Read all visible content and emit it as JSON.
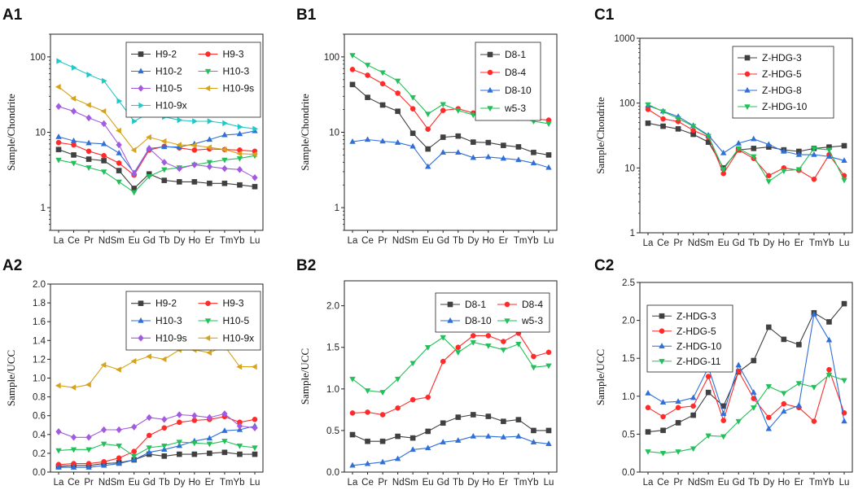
{
  "figure": {
    "elements": [
      "La",
      "Ce",
      "Pr",
      "Nd",
      "Sm",
      "Eu",
      "Gd",
      "Tb",
      "Dy",
      "Ho",
      "Er",
      "Tm",
      "Yb",
      "Lu"
    ],
    "tick_text": [
      "La",
      "Ce",
      "Pr",
      "NdSm",
      "Eu",
      "Gd",
      "Tb",
      "Dy",
      "Ho",
      "Er",
      "TmYb",
      "Lu"
    ]
  },
  "chart_data": [
    {
      "id": "A1",
      "label": "A1",
      "type": "line",
      "yscale": "log",
      "ylabel": "Sample/Chondrite",
      "ylim": [
        0.5,
        200
      ],
      "yticks": [
        1,
        10,
        100
      ],
      "ytick_labels": [
        "1",
        "10",
        "100"
      ],
      "legend_cols": 2,
      "series": [
        {
          "name": "H9-2",
          "color": "#404040",
          "marker": "square",
          "values": [
            5.9,
            5.0,
            4.4,
            4.2,
            3.1,
            1.8,
            2.8,
            2.3,
            2.2,
            2.2,
            2.1,
            2.1,
            2.0,
            1.9
          ]
        },
        {
          "name": "H9-3",
          "color": "#ff2b2b",
          "marker": "circle",
          "values": [
            7.3,
            6.8,
            5.6,
            4.9,
            3.9,
            2.7,
            5.8,
            6.5,
            6.2,
            5.8,
            6.0,
            5.9,
            5.8,
            5.6
          ]
        },
        {
          "name": "H10-2",
          "color": "#2f6fd8",
          "marker": "triangle-up",
          "values": [
            8.7,
            7.7,
            7.2,
            7.0,
            5.3,
            2.9,
            6.1,
            6.4,
            6.4,
            7.0,
            8.0,
            9.2,
            9.5,
            10.4
          ]
        },
        {
          "name": "H10-3",
          "color": "#22c05a",
          "marker": "triangle-down",
          "values": [
            4.3,
            3.9,
            3.4,
            3.0,
            2.2,
            1.6,
            2.6,
            3.2,
            3.4,
            3.7,
            4.0,
            4.3,
            4.5,
            4.9
          ]
        },
        {
          "name": "H10-5",
          "color": "#a25be0",
          "marker": "diamond",
          "values": [
            22,
            19,
            15.5,
            13,
            6.8,
            2.8,
            6.1,
            4.0,
            3.3,
            3.7,
            3.5,
            3.3,
            3.2,
            2.5
          ]
        },
        {
          "name": "H10-9s",
          "color": "#d6a31a",
          "marker": "triangle-left",
          "values": [
            40,
            28,
            23,
            19,
            10.5,
            5.8,
            8.6,
            7.6,
            6.8,
            6.7,
            6.3,
            5.9,
            5.2,
            5.1
          ]
        },
        {
          "name": "H10-9x",
          "color": "#22c8c8",
          "marker": "triangle-right",
          "values": [
            88,
            72,
            58,
            48,
            26,
            14,
            18,
            16,
            14.5,
            14,
            14,
            13.2,
            11.8,
            11.1
          ]
        }
      ]
    },
    {
      "id": "B1",
      "label": "B1",
      "type": "line",
      "yscale": "log",
      "ylabel": "Sample/Chondrite",
      "ylim": [
        0.5,
        200
      ],
      "yticks": [
        1,
        10,
        100
      ],
      "ytick_labels": [
        "1",
        "10",
        "100"
      ],
      "legend_cols": 1,
      "series": [
        {
          "name": "D8-1",
          "color": "#404040",
          "marker": "square",
          "values": [
            43,
            29,
            23,
            19,
            9.7,
            6.0,
            8.6,
            8.9,
            7.4,
            7.3,
            6.7,
            6.4,
            5.4,
            5.0
          ]
        },
        {
          "name": "D8-4",
          "color": "#ff2b2b",
          "marker": "circle",
          "values": [
            68,
            57,
            44,
            33,
            20.5,
            11,
            19.5,
            20.5,
            18,
            18,
            17.5,
            17,
            15,
            14.5
          ]
        },
        {
          "name": "D8-10",
          "color": "#2f6fd8",
          "marker": "triangle-up",
          "values": [
            7.5,
            8.0,
            7.6,
            7.3,
            6.5,
            3.5,
            5.4,
            5.4,
            4.6,
            4.7,
            4.5,
            4.3,
            3.9,
            3.4
          ]
        },
        {
          "name": "w5-3",
          "color": "#22c05a",
          "marker": "triangle-down",
          "values": [
            105,
            78,
            62,
            48,
            29,
            17.5,
            23.5,
            19.5,
            17,
            17,
            16.5,
            15.5,
            14,
            13
          ]
        }
      ]
    },
    {
      "id": "C1",
      "label": "C1",
      "type": "line",
      "yscale": "log",
      "ylabel": "Sample/Chondrite",
      "ylim": [
        1,
        1000
      ],
      "yticks": [
        1,
        10,
        100,
        1000
      ],
      "ytick_labels": [
        "1",
        "10",
        "100",
        "1000"
      ],
      "legend_cols": 1,
      "series": [
        {
          "name": "Z-HDG-3",
          "color": "#404040",
          "marker": "square",
          "values": [
            49,
            44,
            40,
            33,
            25,
            10,
            19,
            20,
            21,
            19,
            18,
            20,
            21,
            22
          ]
        },
        {
          "name": "Z-HDG-5",
          "color": "#ff2b2b",
          "marker": "circle",
          "values": [
            80,
            57,
            52,
            38,
            30,
            8.2,
            19,
            14,
            7.6,
            10,
            9.2,
            6.7,
            16,
            7.6
          ]
        },
        {
          "name": "Z-HDG-8",
          "color": "#2f6fd8",
          "marker": "triangle-up",
          "values": [
            92,
            75,
            62,
            45,
            32,
            17,
            24,
            28,
            23,
            18,
            16,
            16,
            15,
            13
          ]
        },
        {
          "name": "Z-HDG-10",
          "color": "#22c05a",
          "marker": "triangle-down",
          "values": [
            95,
            74,
            58,
            44,
            31,
            9.5,
            20,
            15,
            6.2,
            9,
            9.5,
            20,
            19,
            6.5
          ]
        }
      ]
    },
    {
      "id": "A2",
      "label": "A2",
      "type": "line",
      "yscale": "linear",
      "ylabel": "Sample/UCC",
      "ylim": [
        0,
        2.0
      ],
      "yticks": [
        0,
        0.2,
        0.4,
        0.6,
        0.8,
        1.0,
        1.2,
        1.4,
        1.6,
        1.8,
        2.0
      ],
      "ytick_labels": [
        "0.0",
        "0.2",
        "0.4",
        "0.6",
        "0.8",
        "1.0",
        "1.2",
        "1.4",
        "1.6",
        "1.8",
        "2.0"
      ],
      "legend_cols": 2,
      "series": [
        {
          "name": "H9-2",
          "color": "#404040",
          "marker": "square",
          "values": [
            0.06,
            0.07,
            0.07,
            0.09,
            0.1,
            0.13,
            0.19,
            0.17,
            0.19,
            0.19,
            0.2,
            0.21,
            0.19,
            0.19
          ]
        },
        {
          "name": "H9-3",
          "color": "#ff2b2b",
          "marker": "circle",
          "values": [
            0.08,
            0.09,
            0.09,
            0.11,
            0.15,
            0.22,
            0.39,
            0.47,
            0.53,
            0.55,
            0.56,
            0.59,
            0.53,
            0.56
          ]
        },
        {
          "name": "H10-3",
          "color": "#2f6fd8",
          "marker": "triangle-up",
          "values": [
            0.05,
            0.05,
            0.05,
            0.07,
            0.09,
            0.13,
            0.21,
            0.24,
            0.28,
            0.33,
            0.36,
            0.44,
            0.45,
            0.49
          ]
        },
        {
          "name": "H10-5",
          "color": "#22c05a",
          "marker": "triangle-down",
          "values": [
            0.23,
            0.24,
            0.24,
            0.3,
            0.28,
            0.17,
            0.26,
            0.28,
            0.32,
            0.31,
            0.3,
            0.33,
            0.28,
            0.26
          ]
        },
        {
          "name": "H10-9s",
          "color": "#a25be0",
          "marker": "diamond",
          "values": [
            0.43,
            0.37,
            0.37,
            0.45,
            0.45,
            0.48,
            0.58,
            0.56,
            0.61,
            0.6,
            0.58,
            0.62,
            0.49,
            0.47
          ]
        },
        {
          "name": "H10-9x",
          "color": "#d6a31a",
          "marker": "triangle-left",
          "values": [
            0.92,
            0.9,
            0.93,
            1.14,
            1.09,
            1.18,
            1.23,
            1.2,
            1.3,
            1.3,
            1.27,
            1.34,
            1.12,
            1.12
          ]
        }
      ]
    },
    {
      "id": "B2",
      "label": "B2",
      "type": "line",
      "yscale": "linear",
      "ylabel": "Sample/UCC",
      "ylim": [
        0,
        2.3
      ],
      "yticks": [
        0.0,
        0.5,
        1.0,
        1.5,
        2.0
      ],
      "ytick_labels": [
        "0.0",
        "0.5",
        "1.0",
        "1.5",
        "2.0"
      ],
      "legend_cols": 2,
      "series": [
        {
          "name": "D8-1",
          "color": "#404040",
          "marker": "square",
          "values": [
            0.45,
            0.37,
            0.37,
            0.43,
            0.41,
            0.49,
            0.59,
            0.66,
            0.69,
            0.67,
            0.61,
            0.63,
            0.5,
            0.5
          ]
        },
        {
          "name": "D8-4",
          "color": "#ff2b2b",
          "marker": "circle",
          "values": [
            0.71,
            0.72,
            0.69,
            0.77,
            0.87,
            0.9,
            1.33,
            1.5,
            1.64,
            1.64,
            1.57,
            1.67,
            1.39,
            1.44
          ]
        },
        {
          "name": "D8-10",
          "color": "#2f6fd8",
          "marker": "triangle-up",
          "values": [
            0.08,
            0.1,
            0.12,
            0.16,
            0.27,
            0.29,
            0.36,
            0.38,
            0.43,
            0.43,
            0.42,
            0.43,
            0.36,
            0.34
          ]
        },
        {
          "name": "w5-3",
          "color": "#22c05a",
          "marker": "triangle-down",
          "values": [
            1.12,
            0.98,
            0.96,
            1.12,
            1.31,
            1.5,
            1.62,
            1.44,
            1.56,
            1.52,
            1.47,
            1.54,
            1.26,
            1.28
          ]
        }
      ]
    },
    {
      "id": "C2",
      "label": "C2",
      "type": "line",
      "yscale": "linear",
      "ylabel": "Sample/UCC",
      "ylim": [
        0,
        2.5
      ],
      "yticks": [
        0.0,
        0.5,
        1.0,
        1.5,
        2.0,
        2.5
      ],
      "ytick_labels": [
        "0.0",
        "0.5",
        "1.0",
        "1.5",
        "2.0",
        "2.5"
      ],
      "legend_cols": 1,
      "series": [
        {
          "name": "Z-HDG-3",
          "color": "#404040",
          "marker": "square",
          "values": [
            0.53,
            0.55,
            0.65,
            0.75,
            1.05,
            0.87,
            1.32,
            1.47,
            1.91,
            1.75,
            1.68,
            2.1,
            1.98,
            2.22
          ]
        },
        {
          "name": "Z-HDG-5",
          "color": "#ff2b2b",
          "marker": "circle",
          "values": [
            0.85,
            0.73,
            0.85,
            0.87,
            1.26,
            0.68,
            1.33,
            0.97,
            0.72,
            0.9,
            0.85,
            0.67,
            1.35,
            0.78
          ]
        },
        {
          "name": "Z-HDG-10",
          "color": "#2f6fd8",
          "marker": "triangle-up",
          "values": [
            1.04,
            0.92,
            0.93,
            0.98,
            1.38,
            0.77,
            1.41,
            1.05,
            0.57,
            0.8,
            0.88,
            2.08,
            1.74,
            0.67
          ]
        },
        {
          "name": "Z-HDG-11",
          "color": "#22c05a",
          "marker": "triangle-down",
          "values": [
            0.27,
            0.25,
            0.27,
            0.31,
            0.48,
            0.47,
            0.67,
            0.85,
            1.13,
            1.04,
            1.17,
            1.12,
            1.28,
            1.21
          ]
        }
      ]
    }
  ]
}
